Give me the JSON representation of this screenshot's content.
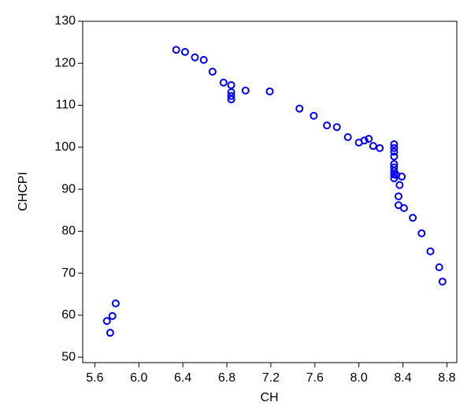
{
  "chart_data": {
    "type": "scatter",
    "x_label": "CH",
    "y_label": "CHCPI",
    "color": "#0000ff",
    "x": [
      6.34,
      6.42,
      6.51,
      6.59,
      6.67,
      6.77,
      6.84,
      6.84,
      6.84,
      6.84,
      6.97,
      7.19,
      7.46,
      7.59,
      7.71,
      7.8,
      7.9,
      8.0,
      8.05,
      8.09,
      8.13,
      8.19,
      8.32,
      8.32,
      8.32,
      8.32,
      8.32,
      8.32,
      8.32,
      8.32,
      8.32,
      8.34,
      8.39,
      8.37,
      8.36,
      8.36,
      8.41,
      8.49,
      8.57,
      8.65,
      8.73,
      8.76,
      5.79,
      5.76,
      5.71,
      5.74
    ],
    "values": [
      123.2,
      122.7,
      121.4,
      120.8,
      118.0,
      115.4,
      114.8,
      113.1,
      112.2,
      111.4,
      113.5,
      113.3,
      109.2,
      107.5,
      105.2,
      104.8,
      102.4,
      101.1,
      101.6,
      102.0,
      100.3,
      99.8,
      100.7,
      99.8,
      98.9,
      97.8,
      96.0,
      95.2,
      94.3,
      93.5,
      92.6,
      93.4,
      93.0,
      91.0,
      88.3,
      86.2,
      85.5,
      83.2,
      79.5,
      75.2,
      71.4,
      68.0,
      62.8,
      59.8,
      58.6,
      55.8
    ],
    "xlim": [
      5.49,
      8.89
    ],
    "ylim": [
      48.7,
      130
    ],
    "xticks": [
      {
        "value": 5.6,
        "label": "5.6"
      },
      {
        "value": 6.0,
        "label": "6.0"
      },
      {
        "value": 6.4,
        "label": "6.4"
      },
      {
        "value": 6.8,
        "label": "6.8"
      },
      {
        "value": 7.2,
        "label": "7.2"
      },
      {
        "value": 7.6,
        "label": "7.6"
      },
      {
        "value": 8.0,
        "label": "8.0"
      },
      {
        "value": 8.4,
        "label": "8.4"
      },
      {
        "value": 8.8,
        "label": "8.8"
      }
    ],
    "yticks": [
      50,
      60,
      70,
      80,
      90,
      100,
      110,
      120,
      130
    ]
  }
}
